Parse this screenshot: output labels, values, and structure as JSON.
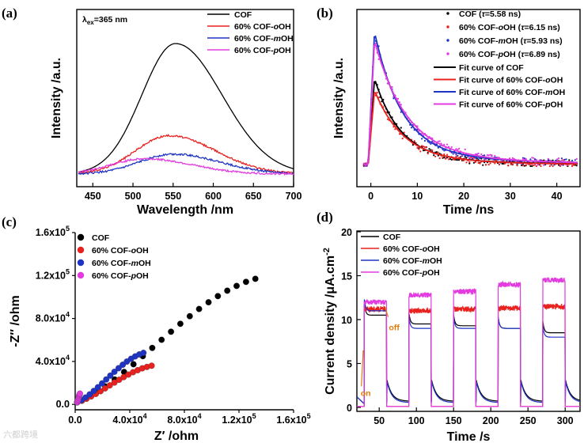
{
  "colors": {
    "black": "#000000",
    "red": "#e8211e",
    "blue": "#1f33c4",
    "magenta": "#e23be0",
    "orange": "#e07a10"
  },
  "watermark": "六都跨境",
  "chart_data": [
    {
      "panel": "(a)",
      "type": "line",
      "xlabel": "Wavelength /nm",
      "ylabel": "Intensity /a.u.",
      "xlim": [
        430,
        700
      ],
      "x_ticks": [
        450,
        500,
        550,
        600,
        650,
        700
      ],
      "annotation": {
        "lambda": "λ",
        "sub": "ex",
        "rest": "=365 nm"
      },
      "legend_pos": "top-right",
      "series": [
        {
          "name": "COF",
          "color": "#000000",
          "peak_nm": 553,
          "peak": 0.85
        },
        {
          "name": "60% COF-oOH",
          "name_parts": [
            "60% COF-",
            "o",
            "OH"
          ],
          "color": "#e8211e",
          "peak_nm": 545,
          "peak": 0.25
        },
        {
          "name": "60% COF-mOH",
          "name_parts": [
            "60% COF-",
            "m",
            "OH"
          ],
          "color": "#1f33c4",
          "peak_nm": 550,
          "peak": 0.13
        },
        {
          "name": "60% COF-pOH",
          "name_parts": [
            "60% COF-",
            "p",
            "OH"
          ],
          "color": "#e23be0",
          "peak_nm": 515,
          "peak": 0.1
        }
      ]
    },
    {
      "panel": "(b)",
      "type": "scatter",
      "xlabel": "Time /ns",
      "ylabel": "Intensity /a.u.",
      "xlim": [
        -3,
        45
      ],
      "x_ticks": [
        0,
        10,
        20,
        30,
        40
      ],
      "legend_pos": "top-right",
      "series": [
        {
          "name": "COF (τ=5.58 ns)",
          "name_parts": [
            "COF (",
            "τ",
            "=5.58 ns)"
          ],
          "color": "#000000",
          "tau": 5.58,
          "peak": 0.6
        },
        {
          "name": "60% COF-oOH (τ=6.15 ns)",
          "name_parts": [
            "60% COF-",
            "o",
            "OH (",
            "τ",
            "=6.15 ns)"
          ],
          "color": "#e8211e",
          "tau": 6.15,
          "peak": 0.52
        },
        {
          "name": "60% COF-mOH (τ=5.93 ns)",
          "name_parts": [
            "60% COF-",
            "m",
            "OH (",
            "τ",
            "=5.93 ns)"
          ],
          "color": "#1f33c4",
          "tau": 5.93,
          "peak": 0.92
        },
        {
          "name": "60% COF-pOH (τ=6.89 ns)",
          "name_parts": [
            "60% COF-",
            "p",
            "OH (",
            "τ",
            "=6.89 ns)"
          ],
          "color": "#e23be0",
          "tau": 6.89,
          "peak": 0.86
        }
      ],
      "fits": [
        {
          "name": "Fit curve of COF",
          "name_parts": [
            "Fit curve of COF"
          ],
          "color": "#000000"
        },
        {
          "name": "Fit curve of 60% COF-oOH",
          "name_parts": [
            "Fit curve of 60% COF-",
            "o",
            "OH"
          ],
          "color": "#e8211e"
        },
        {
          "name": "Fit curve of 60% COF-mOH",
          "name_parts": [
            "Fit curve of 60% COF-",
            "m",
            "OH"
          ],
          "color": "#1f33c4"
        },
        {
          "name": "Fit curve of 60% COF-pOH",
          "name_parts": [
            "Fit curve of 60% COF-",
            "p",
            "OH"
          ],
          "color": "#e23be0"
        }
      ]
    },
    {
      "panel": "(c)",
      "type": "scatter",
      "xlabel": "Z′ /ohm",
      "ylabel": "-Z″ /ohm",
      "xlim": [
        0,
        160000
      ],
      "ylim": [
        -5000,
        160000
      ],
      "x_ticks": [
        0,
        40000,
        80000,
        120000,
        160000
      ],
      "x_tick_labels": [
        {
          "m": "0.0",
          "e": ""
        },
        {
          "m": "4.0x10",
          "e": "4"
        },
        {
          "m": "8.0x10",
          "e": "4"
        },
        {
          "m": "1.2x10",
          "e": "5"
        },
        {
          "m": "1.6x10",
          "e": "5"
        }
      ],
      "y_ticks": [
        0,
        40000,
        80000,
        120000,
        160000
      ],
      "y_tick_labels": [
        {
          "m": "0.0",
          "e": ""
        },
        {
          "m": "4.0x10",
          "e": "4"
        },
        {
          "m": "8.0x10",
          "e": "4"
        },
        {
          "m": "1.2x10",
          "e": "5"
        },
        {
          "m": "1.6x10",
          "e": "5"
        }
      ],
      "legend_pos": "top-left",
      "series": [
        {
          "name": "COF",
          "name_parts": [
            "COF"
          ],
          "color": "#000000",
          "z_end": 132000,
          "peak": 115000,
          "n": 20
        },
        {
          "name": "60% COF-oOH",
          "name_parts": [
            "60% COF-",
            "o",
            "OH"
          ],
          "color": "#e8211e",
          "z_end": 56000,
          "peak": 34000,
          "n": 17
        },
        {
          "name": "60% COF-mOH",
          "name_parts": [
            "60% COF-",
            "m",
            "OH"
          ],
          "color": "#1f33c4",
          "z_end": 50000,
          "peak": 46000,
          "n": 17
        },
        {
          "name": "60% COF-pOH",
          "name_parts": [
            "60% COF-",
            "p",
            "OH"
          ],
          "color": "#e23be0",
          "z_end": 3500,
          "peak": 8000,
          "n": 7
        }
      ]
    },
    {
      "panel": "(d)",
      "type": "line",
      "xlabel": "Time /s",
      "ylabel": "Current density /μA.cm",
      "ylabel_sup": "-2",
      "xlim": [
        20,
        320
      ],
      "ylim": [
        0,
        20
      ],
      "x_ticks": [
        50,
        100,
        150,
        200,
        250,
        300
      ],
      "y_ticks": [
        0,
        5,
        10,
        15,
        20
      ],
      "on_label": "on",
      "off_label": "off",
      "on_times": [
        30,
        90,
        150,
        210,
        270
      ],
      "off_times": [
        60,
        120,
        180,
        240,
        300
      ],
      "legend_pos": "top-left",
      "series": [
        {
          "name": "COF",
          "name_parts": [
            "COF"
          ],
          "color": "#000000",
          "levels": [
            10.5,
            9.5,
            9.3,
            9.0,
            8.5
          ]
        },
        {
          "name": "60% COF-oOH",
          "name_parts": [
            "60% COF-",
            "o",
            "OH"
          ],
          "color": "#e8211e",
          "levels": [
            11.2,
            11.0,
            11.2,
            11.3,
            11.5
          ]
        },
        {
          "name": "60% COF-mOH",
          "name_parts": [
            "60% COF-",
            "m",
            "OH"
          ],
          "color": "#1f33c4",
          "levels": [
            11.0,
            9.0,
            9.0,
            9.0,
            8.0
          ]
        },
        {
          "name": "60% COF-pOH",
          "name_parts": [
            "60% COF-",
            "p",
            "OH"
          ],
          "color": "#e23be0",
          "levels": [
            12.0,
            12.8,
            13.2,
            14.0,
            14.5
          ]
        }
      ]
    }
  ]
}
